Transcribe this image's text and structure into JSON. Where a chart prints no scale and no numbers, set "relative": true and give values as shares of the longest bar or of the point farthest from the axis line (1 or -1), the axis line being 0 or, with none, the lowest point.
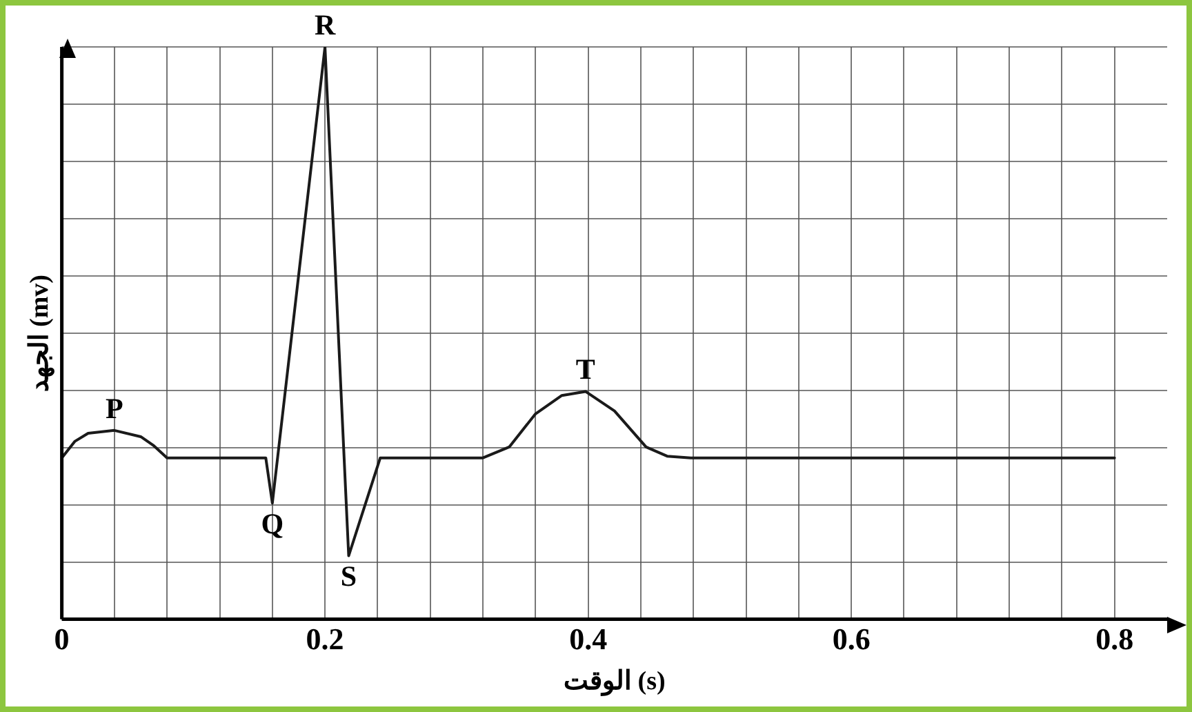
{
  "chart_data": {
    "type": "line",
    "xlabel": "الوقت (s)",
    "ylabel": "الجهد (mv)",
    "relative": true,
    "series": [
      {
        "color": "#1a1a1a",
        "x": [
          0,
          0.01,
          0.02,
          0.04,
          0.06,
          0.07,
          0.08,
          0.155,
          0.16,
          0.2,
          0.218,
          0.242,
          0.32,
          0.34,
          0.36,
          0.38,
          0.398,
          0.42,
          0.444,
          0.46,
          0.478,
          0.8
        ],
        "values": [
          0.282,
          0.311,
          0.325,
          0.33,
          0.319,
          0.303,
          0.282,
          0.282,
          0.203,
          1,
          0.111,
          0.282,
          0.282,
          0.301,
          0.359,
          0.391,
          0.398,
          0.364,
          0.301,
          0.285,
          0.282,
          0.282
        ]
      }
    ],
    "xlim": [
      0,
      0.84
    ],
    "xticks": [
      0,
      {
        "value": 0.04,
        "label": null
      },
      {
        "value": 0.08,
        "label": null
      },
      {
        "value": 0.12,
        "label": null
      },
      {
        "value": 0.16,
        "label": null
      },
      0.2,
      {
        "value": 0.24,
        "label": null
      },
      {
        "value": 0.28,
        "label": null
      },
      {
        "value": 0.32,
        "label": null
      },
      {
        "value": 0.36,
        "label": null
      },
      0.4,
      {
        "value": 0.44,
        "label": null
      },
      {
        "value": 0.48,
        "label": null
      },
      {
        "value": 0.52,
        "label": null
      },
      {
        "value": 0.56,
        "label": null
      },
      0.6,
      {
        "value": 0.64,
        "label": null
      },
      {
        "value": 0.68,
        "label": null
      },
      {
        "value": 0.72,
        "label": null
      },
      {
        "value": 0.76,
        "label": null
      },
      0.8
    ],
    "grid": true,
    "marker": "none",
    "line_style": "solid",
    "legend": false,
    "annotations": [
      {
        "text": "P",
        "x": 0.04,
        "y": 0.33
      },
      {
        "text": "Q",
        "x": 0.16,
        "y": 0.203
      },
      {
        "text": "R",
        "x": 0.2,
        "y": 1
      },
      {
        "text": "S",
        "x": 0.218,
        "y": 0.111
      },
      {
        "text": "T",
        "x": 0.398,
        "y": 0.398
      }
    ]
  }
}
